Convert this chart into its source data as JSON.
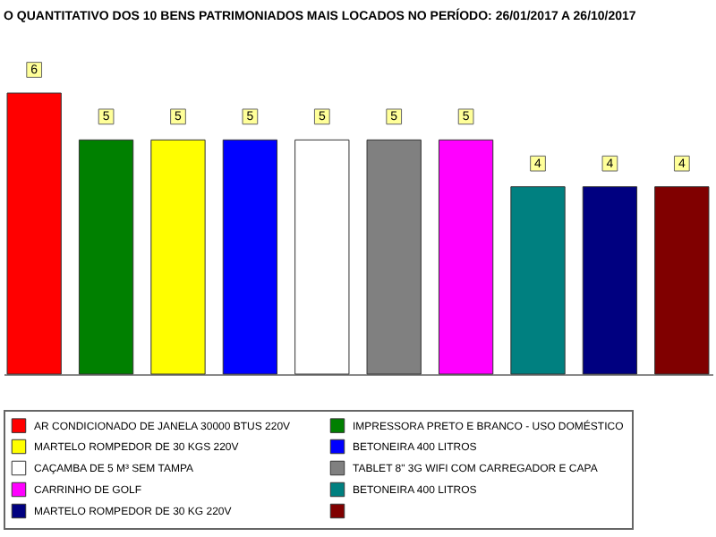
{
  "chart_data": {
    "type": "bar",
    "title": "O QUANTITATIVO DOS 10 BENS PATRIMONIADOS MAIS LOCADOS NO PERÍODO: 26/01/2017 A 26/10/2017",
    "categories": [
      null,
      null,
      null,
      null,
      null,
      null,
      null,
      null,
      null,
      null
    ],
    "series": [
      {
        "name": "AR CONDICIONADO DE JANELA 30000 BTUS 220V",
        "color": "#ff0000",
        "values": [
          6,
          null,
          null,
          null,
          null,
          null,
          null,
          null,
          null,
          null
        ]
      },
      {
        "name": "IMPRESSORA PRETO E BRANCO - USO DOMÉSTICO",
        "color": "#008000",
        "values": [
          null,
          5,
          null,
          null,
          null,
          null,
          null,
          null,
          null,
          null
        ]
      },
      {
        "name": "MARTELO ROMPEDOR DE 30 KGS 220V",
        "color": "#ffff00",
        "values": [
          null,
          null,
          5,
          null,
          null,
          null,
          null,
          null,
          null,
          null
        ]
      },
      {
        "name": "BETONEIRA 400 LITROS",
        "color": "#0000ff",
        "values": [
          null,
          null,
          null,
          5,
          null,
          null,
          null,
          null,
          null,
          null
        ]
      },
      {
        "name": "CAÇAMBA DE 5 M³ SEM TAMPA",
        "color": "#ffffff",
        "values": [
          null,
          null,
          null,
          null,
          5,
          null,
          null,
          null,
          null,
          null
        ]
      },
      {
        "name": "TABLET 8\" 3G WIFI COM CARREGADOR E CAPA",
        "color": "#808080",
        "values": [
          null,
          null,
          null,
          null,
          null,
          5,
          null,
          null,
          null,
          null
        ]
      },
      {
        "name": "CARRINHO DE GOLF",
        "color": "#ff00ff",
        "values": [
          null,
          null,
          null,
          null,
          null,
          null,
          5,
          null,
          null,
          null
        ]
      },
      {
        "name": "BETONEIRA 400 LITROS",
        "color": "#008080",
        "values": [
          null,
          null,
          null,
          null,
          null,
          null,
          null,
          4,
          null,
          null
        ]
      },
      {
        "name": "MARTELO ROMPEDOR DE 30 KG 220V",
        "color": "#000080",
        "values": [
          null,
          null,
          null,
          null,
          null,
          null,
          null,
          null,
          4,
          null
        ]
      },
      {
        "color": "#800000",
        "values": [
          null,
          null,
          null,
          null,
          null,
          null,
          null,
          null,
          null,
          4
        ]
      }
    ],
    "stacked": true,
    "data_labels": true,
    "legend": "bottom"
  }
}
